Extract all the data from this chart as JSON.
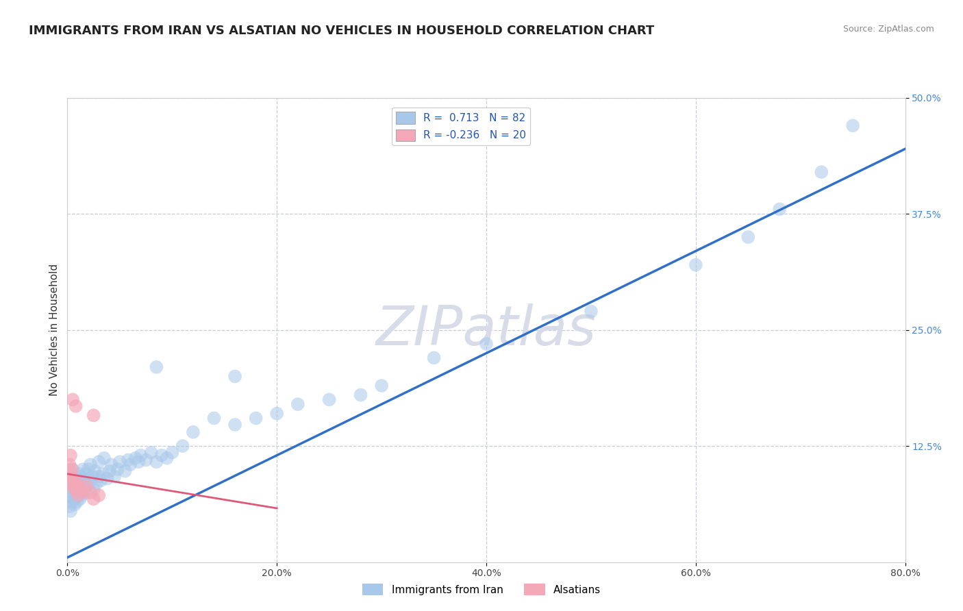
{
  "title": "IMMIGRANTS FROM IRAN VS ALSATIAN NO VEHICLES IN HOUSEHOLD CORRELATION CHART",
  "source_text": "Source: ZipAtlas.com",
  "ylabel": "No Vehicles in Household",
  "xlim": [
    0.0,
    0.8
  ],
  "ylim": [
    0.0,
    0.5
  ],
  "xtick_labels": [
    "0.0%",
    "",
    "20.0%",
    "",
    "40.0%",
    "",
    "60.0%",
    "",
    "80.0%"
  ],
  "xtick_vals": [
    0.0,
    0.1,
    0.2,
    0.3,
    0.4,
    0.5,
    0.6,
    0.7,
    0.8
  ],
  "ytick_labels": [
    "12.5%",
    "25.0%",
    "37.5%",
    "50.0%"
  ],
  "ytick_vals": [
    0.125,
    0.25,
    0.375,
    0.5
  ],
  "blue_color": "#a8c8ea",
  "pink_color": "#f4a8b8",
  "blue_line_color": "#3070c8",
  "pink_line_color": "#e05878",
  "grid_color": "#c8ccd8",
  "background_color": "#ffffff",
  "ytick_color": "#4488dd",
  "xtick_color": "#444444",
  "watermark": "ZIPatlas",
  "watermark_color": "#d8dce8",
  "scatter_alpha": 0.55,
  "scatter_size": 200,
  "title_fontsize": 13,
  "source_fontsize": 9,
  "axis_label_fontsize": 11,
  "tick_fontsize": 10,
  "legend_fontsize": 11,
  "blue_line_x": [
    0.0,
    0.8
  ],
  "blue_line_y": [
    0.005,
    0.445
  ],
  "pink_line_x": [
    0.0,
    0.2
  ],
  "pink_line_y": [
    0.095,
    0.058
  ],
  "blue_scatter": [
    [
      0.002,
      0.06
    ],
    [
      0.003,
      0.055
    ],
    [
      0.003,
      0.08
    ],
    [
      0.004,
      0.07
    ],
    [
      0.004,
      0.09
    ],
    [
      0.005,
      0.065
    ],
    [
      0.005,
      0.075
    ],
    [
      0.005,
      0.1
    ],
    [
      0.006,
      0.068
    ],
    [
      0.006,
      0.08
    ],
    [
      0.007,
      0.062
    ],
    [
      0.007,
      0.085
    ],
    [
      0.008,
      0.07
    ],
    [
      0.008,
      0.09
    ],
    [
      0.009,
      0.065
    ],
    [
      0.009,
      0.078
    ],
    [
      0.01,
      0.072
    ],
    [
      0.01,
      0.088
    ],
    [
      0.011,
      0.075
    ],
    [
      0.011,
      0.095
    ],
    [
      0.012,
      0.068
    ],
    [
      0.012,
      0.082
    ],
    [
      0.013,
      0.078
    ],
    [
      0.013,
      0.092
    ],
    [
      0.014,
      0.072
    ],
    [
      0.015,
      0.085
    ],
    [
      0.015,
      0.1
    ],
    [
      0.016,
      0.078
    ],
    [
      0.017,
      0.088
    ],
    [
      0.018,
      0.075
    ],
    [
      0.018,
      0.095
    ],
    [
      0.02,
      0.082
    ],
    [
      0.02,
      0.1
    ],
    [
      0.022,
      0.088
    ],
    [
      0.022,
      0.105
    ],
    [
      0.024,
      0.092
    ],
    [
      0.025,
      0.078
    ],
    [
      0.026,
      0.098
    ],
    [
      0.028,
      0.085
    ],
    [
      0.03,
      0.092
    ],
    [
      0.03,
      0.108
    ],
    [
      0.032,
      0.088
    ],
    [
      0.034,
      0.095
    ],
    [
      0.035,
      0.112
    ],
    [
      0.038,
      0.09
    ],
    [
      0.04,
      0.098
    ],
    [
      0.042,
      0.105
    ],
    [
      0.045,
      0.092
    ],
    [
      0.048,
      0.1
    ],
    [
      0.05,
      0.108
    ],
    [
      0.055,
      0.098
    ],
    [
      0.058,
      0.11
    ],
    [
      0.06,
      0.105
    ],
    [
      0.065,
      0.112
    ],
    [
      0.068,
      0.108
    ],
    [
      0.07,
      0.115
    ],
    [
      0.075,
      0.11
    ],
    [
      0.08,
      0.118
    ],
    [
      0.085,
      0.108
    ],
    [
      0.09,
      0.115
    ],
    [
      0.095,
      0.112
    ],
    [
      0.1,
      0.118
    ],
    [
      0.11,
      0.125
    ],
    [
      0.12,
      0.14
    ],
    [
      0.14,
      0.155
    ],
    [
      0.16,
      0.148
    ],
    [
      0.18,
      0.155
    ],
    [
      0.2,
      0.16
    ],
    [
      0.22,
      0.17
    ],
    [
      0.25,
      0.175
    ],
    [
      0.28,
      0.18
    ],
    [
      0.3,
      0.19
    ],
    [
      0.35,
      0.22
    ],
    [
      0.4,
      0.235
    ],
    [
      0.5,
      0.27
    ],
    [
      0.6,
      0.32
    ],
    [
      0.65,
      0.35
    ],
    [
      0.68,
      0.38
    ],
    [
      0.72,
      0.42
    ],
    [
      0.75,
      0.47
    ],
    [
      0.16,
      0.2
    ],
    [
      0.085,
      0.21
    ]
  ],
  "pink_scatter": [
    [
      0.002,
      0.105
    ],
    [
      0.003,
      0.095
    ],
    [
      0.003,
      0.115
    ],
    [
      0.004,
      0.085
    ],
    [
      0.004,
      0.1
    ],
    [
      0.005,
      0.09
    ],
    [
      0.005,
      0.175
    ],
    [
      0.006,
      0.08
    ],
    [
      0.007,
      0.088
    ],
    [
      0.008,
      0.168
    ],
    [
      0.008,
      0.078
    ],
    [
      0.009,
      0.085
    ],
    [
      0.01,
      0.072
    ],
    [
      0.012,
      0.08
    ],
    [
      0.015,
      0.075
    ],
    [
      0.018,
      0.082
    ],
    [
      0.022,
      0.075
    ],
    [
      0.025,
      0.068
    ],
    [
      0.025,
      0.158
    ],
    [
      0.03,
      0.072
    ]
  ]
}
